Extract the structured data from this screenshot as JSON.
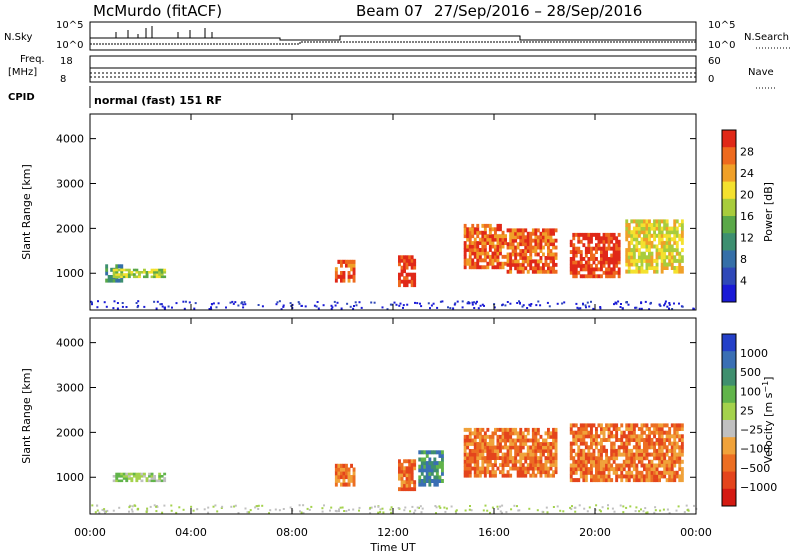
{
  "header": {
    "station": "McMurdo (fitACF)",
    "beam": "Beam 07",
    "date_range": "27/Sep/2016 – 28/Sep/2016"
  },
  "top_panels": {
    "nsky_label": "N.Sky",
    "nsky_ticks": [
      "10^5",
      "10^0"
    ],
    "nsearch_label": "N.Search",
    "nsearch_ticks": [
      "10^5",
      "10^0"
    ],
    "freq_label_1": "Freq.",
    "freq_label_2": "[MHz]",
    "freq_ticks": [
      "18",
      "8"
    ],
    "nave_label": "Nave",
    "nave_ticks": [
      "60",
      "0"
    ],
    "cpid_label": "CPID",
    "cpid_text": "normal (fast) 151 RF"
  },
  "xaxis": {
    "label": "Time UT",
    "ticks": [
      "00:00",
      "04:00",
      "08:00",
      "12:00",
      "16:00",
      "20:00",
      "00:00"
    ]
  },
  "colors": {
    "power": [
      "#1a1ad6",
      "#2f48b8",
      "#356fa8",
      "#3d8f70",
      "#5aa848",
      "#a8cc3c",
      "#f4e12e",
      "#f0a028",
      "#ee6a1e",
      "#e02818"
    ],
    "velocity": [
      "#2440c8",
      "#3a6fb4",
      "#3f8f6e",
      "#61b44a",
      "#a4d24c",
      "#c0c0c0",
      "#f0a23a",
      "#ec6e22",
      "#e4441c",
      "#d41a12"
    ]
  },
  "chart_data": [
    {
      "type": "heatmap",
      "xlabel": "",
      "ylabel": "Slant Range [km]",
      "y_ticks": [
        "1000",
        "2000",
        "3000",
        "4000"
      ],
      "ylim": [
        180,
        4550
      ],
      "x_range_hours": [
        0,
        24
      ],
      "colorbar": {
        "label": "Power [dB]",
        "ticks": [
          "4",
          "8",
          "12",
          "16",
          "20",
          "24",
          "28"
        ],
        "range": [
          0,
          32
        ]
      },
      "regions": [
        {
          "t": [
            0.6,
            1.3
          ],
          "r": [
            800,
            1200
          ],
          "level": 3
        },
        {
          "t": [
            0.9,
            3.0
          ],
          "r": [
            900,
            1100
          ],
          "level": 5
        },
        {
          "t": [
            9.7,
            10.5
          ],
          "r": [
            800,
            1300
          ],
          "level": 8
        },
        {
          "t": [
            12.2,
            12.9
          ],
          "r": [
            700,
            1400
          ],
          "level": 9
        },
        {
          "t": [
            14.8,
            16.5
          ],
          "r": [
            1100,
            2100
          ],
          "level": 8
        },
        {
          "t": [
            16.5,
            18.5
          ],
          "r": [
            1000,
            2000
          ],
          "level": 8
        },
        {
          "t": [
            19.0,
            21.0
          ],
          "r": [
            900,
            1900
          ],
          "level": 9
        },
        {
          "t": [
            21.2,
            23.5
          ],
          "r": [
            1000,
            2200
          ],
          "level": 6
        }
      ]
    },
    {
      "type": "heatmap",
      "xlabel": "Time UT",
      "ylabel": "Slant Range [km]",
      "y_ticks": [
        "1000",
        "2000",
        "3000",
        "4000"
      ],
      "ylim": [
        180,
        4550
      ],
      "x_range_hours": [
        0,
        24
      ],
      "colorbar": {
        "label": "Velocity [m s^-1]",
        "ticks": [
          "1000",
          "500",
          "100",
          "25",
          "−25",
          "−100",
          "−500",
          "−1000"
        ],
        "range": [
          -1000,
          1000
        ]
      },
      "regions": [
        {
          "t": [
            0.9,
            3.0
          ],
          "r": [
            900,
            1100
          ],
          "velocity": 50
        },
        {
          "t": [
            9.7,
            10.5
          ],
          "r": [
            800,
            1300
          ],
          "velocity": -300
        },
        {
          "t": [
            12.2,
            12.9
          ],
          "r": [
            700,
            1400
          ],
          "velocity": -300
        },
        {
          "t": [
            13.0,
            14.0
          ],
          "r": [
            800,
            1600
          ],
          "velocity": 200
        },
        {
          "t": [
            14.8,
            18.5
          ],
          "r": [
            1000,
            2100
          ],
          "velocity": -200
        },
        {
          "t": [
            19.0,
            23.5
          ],
          "r": [
            900,
            2200
          ],
          "velocity": -150
        }
      ]
    }
  ]
}
